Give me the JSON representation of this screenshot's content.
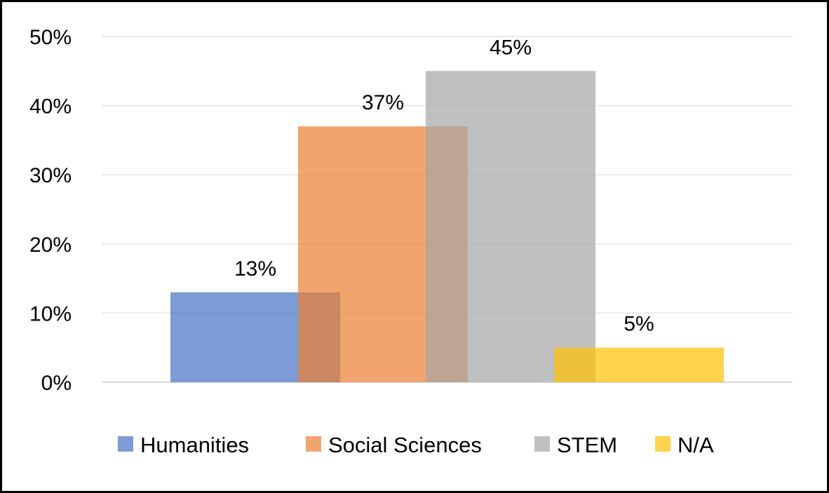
{
  "chart_data": {
    "type": "bar",
    "categories": [
      "Humanities",
      "Social Sciences",
      "STEM",
      "N/A"
    ],
    "values": [
      13,
      37,
      45,
      5
    ],
    "value_format": "percent",
    "data_labels": [
      "13%",
      "37%",
      "45%",
      "5%"
    ],
    "title": "",
    "xlabel": "",
    "ylabel": "",
    "ylim": [
      0,
      50
    ],
    "yticks": [
      0,
      10,
      20,
      30,
      40,
      50
    ],
    "ytick_labels": [
      "0%",
      "10%",
      "20%",
      "30%",
      "40%",
      "50%"
    ],
    "grid": true,
    "legend": {
      "position": "bottom",
      "entries": [
        "Humanities",
        "Social Sciences",
        "STEM",
        "N/A"
      ]
    },
    "colors": [
      "#4472C4",
      "#ED7D31",
      "#A5A5A5",
      "#FFC000"
    ],
    "bars_overlap": true,
    "bar_opacity": 0.7
  }
}
